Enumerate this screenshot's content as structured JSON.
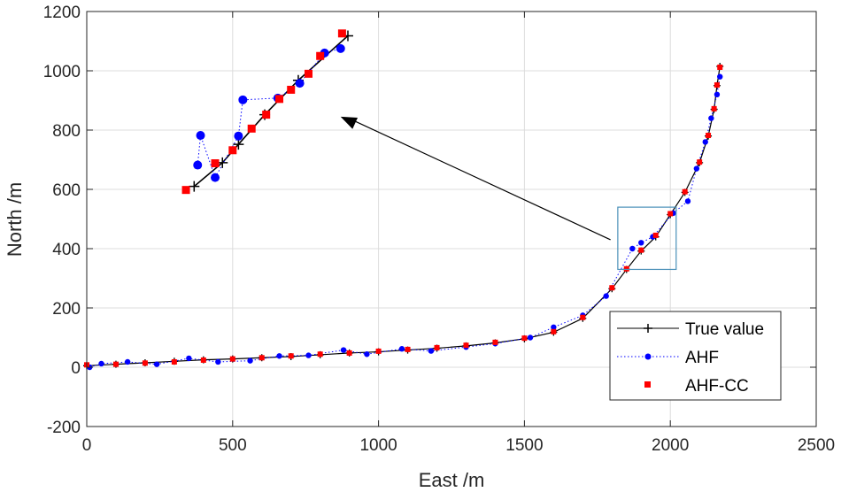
{
  "chart_data": {
    "type": "line",
    "title": "",
    "xlabel": "East /m",
    "ylabel": "North /m",
    "xlim": [
      0,
      2500
    ],
    "ylim": [
      -200,
      1200
    ],
    "xticks": [
      0,
      500,
      1000,
      1500,
      2000,
      2500
    ],
    "yticks": [
      -200,
      0,
      200,
      400,
      600,
      800,
      1000,
      1200
    ],
    "grid": true,
    "legend_position": "bottom-right",
    "series": [
      {
        "name": "True value",
        "style": "solid line with plus markers",
        "color": "#000000",
        "points": [
          [
            0,
            5
          ],
          [
            100,
            10
          ],
          [
            200,
            15
          ],
          [
            300,
            20
          ],
          [
            400,
            25
          ],
          [
            500,
            28
          ],
          [
            600,
            32
          ],
          [
            700,
            36
          ],
          [
            800,
            42
          ],
          [
            900,
            48
          ],
          [
            1000,
            52
          ],
          [
            1100,
            58
          ],
          [
            1200,
            64
          ],
          [
            1300,
            72
          ],
          [
            1400,
            82
          ],
          [
            1500,
            96
          ],
          [
            1600,
            118
          ],
          [
            1700,
            165
          ],
          [
            1800,
            265
          ],
          [
            1850,
            330
          ],
          [
            1900,
            392
          ],
          [
            1950,
            440
          ],
          [
            2000,
            515
          ],
          [
            2050,
            590
          ],
          [
            2100,
            690
          ],
          [
            2130,
            780
          ],
          [
            2150,
            870
          ],
          [
            2160,
            950
          ],
          [
            2170,
            1015
          ]
        ]
      },
      {
        "name": "AHF",
        "style": "dotted line with circle markers",
        "color": "#0000ff",
        "points": [
          [
            10,
            0
          ],
          [
            50,
            12
          ],
          [
            140,
            18
          ],
          [
            240,
            10
          ],
          [
            350,
            30
          ],
          [
            450,
            18
          ],
          [
            560,
            22
          ],
          [
            660,
            38
          ],
          [
            760,
            40
          ],
          [
            880,
            58
          ],
          [
            960,
            44
          ],
          [
            1080,
            62
          ],
          [
            1180,
            55
          ],
          [
            1300,
            68
          ],
          [
            1400,
            80
          ],
          [
            1520,
            100
          ],
          [
            1600,
            135
          ],
          [
            1700,
            175
          ],
          [
            1780,
            240
          ],
          [
            1870,
            400
          ],
          [
            1900,
            420
          ],
          [
            1940,
            440
          ],
          [
            2010,
            520
          ],
          [
            2060,
            560
          ],
          [
            2090,
            670
          ],
          [
            2120,
            760
          ],
          [
            2140,
            840
          ],
          [
            2160,
            920
          ],
          [
            2170,
            980
          ]
        ]
      },
      {
        "name": "AHF-CC",
        "style": "square markers",
        "color": "#ff0000",
        "points": [
          [
            0,
            8
          ],
          [
            100,
            10
          ],
          [
            200,
            14
          ],
          [
            300,
            18
          ],
          [
            400,
            24
          ],
          [
            500,
            28
          ],
          [
            600,
            32
          ],
          [
            700,
            38
          ],
          [
            800,
            44
          ],
          [
            900,
            48
          ],
          [
            1000,
            54
          ],
          [
            1100,
            60
          ],
          [
            1200,
            66
          ],
          [
            1300,
            74
          ],
          [
            1400,
            84
          ],
          [
            1500,
            98
          ],
          [
            1600,
            120
          ],
          [
            1700,
            168
          ],
          [
            1800,
            268
          ],
          [
            1850,
            332
          ],
          [
            1900,
            395
          ],
          [
            1950,
            445
          ],
          [
            2000,
            518
          ],
          [
            2050,
            592
          ],
          [
            2100,
            692
          ],
          [
            2130,
            782
          ],
          [
            2150,
            872
          ],
          [
            2160,
            952
          ],
          [
            2170,
            1012
          ]
        ]
      }
    ],
    "inset": {
      "description": "zoomed view of the highlighted region",
      "source_region": {
        "x": [
          1820,
          2020
        ],
        "y": [
          330,
          540
        ]
      },
      "true_value": [
        [
          368,
          610
        ],
        [
          465,
          690
        ],
        [
          520,
          752
        ],
        [
          610,
          852
        ],
        [
          725,
          968
        ],
        [
          895,
          1118
        ]
      ],
      "ahf": [
        [
          380,
          682
        ],
        [
          390,
          782
        ],
        [
          440,
          640
        ],
        [
          520,
          780
        ],
        [
          535,
          902
        ],
        [
          655,
          908
        ],
        [
          730,
          958
        ],
        [
          815,
          1060
        ],
        [
          870,
          1075
        ]
      ],
      "ahf_cc": [
        [
          340,
          598
        ],
        [
          440,
          688
        ],
        [
          500,
          732
        ],
        [
          565,
          805
        ],
        [
          615,
          852
        ],
        [
          660,
          905
        ],
        [
          700,
          936
        ],
        [
          760,
          990
        ],
        [
          800,
          1050
        ],
        [
          875,
          1126
        ]
      ]
    }
  }
}
